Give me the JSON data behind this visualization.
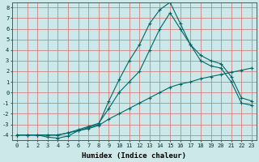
{
  "xlabel": "Humidex (Indice chaleur)",
  "bg_color": "#cce8e8",
  "grid_color": "#d08080",
  "line_color": "#006868",
  "xlim": [
    -0.5,
    23.5
  ],
  "ylim": [
    -4.5,
    8.5
  ],
  "xticks": [
    0,
    1,
    2,
    3,
    4,
    5,
    6,
    7,
    8,
    9,
    10,
    11,
    12,
    13,
    14,
    15,
    16,
    17,
    18,
    19,
    20,
    21,
    22,
    23
  ],
  "yticks": [
    -4,
    -3,
    -2,
    -1,
    0,
    1,
    2,
    3,
    4,
    5,
    6,
    7,
    8
  ],
  "line1_x": [
    0,
    1,
    2,
    3,
    4,
    5,
    6,
    7,
    8,
    9,
    10,
    11,
    12,
    13,
    14,
    15,
    16,
    17,
    18,
    19,
    20,
    21,
    22,
    23
  ],
  "line1_y": [
    -4,
    -4,
    -4,
    -4,
    -4,
    -3.8,
    -3.6,
    -3.4,
    -3.1,
    -2.5,
    -2.0,
    -1.5,
    -1.0,
    -0.5,
    0.0,
    0.5,
    0.8,
    1.0,
    1.3,
    1.5,
    1.7,
    1.9,
    2.1,
    2.3
  ],
  "line2_x": [
    0,
    1,
    2,
    3,
    4,
    5,
    6,
    7,
    8,
    9,
    10,
    11,
    12,
    13,
    14,
    15,
    16,
    17,
    18,
    19,
    20,
    21,
    22,
    23
  ],
  "line2_y": [
    -4,
    -4,
    -4,
    -4.2,
    -4.3,
    -4.1,
    -3.6,
    -3.3,
    -3.0,
    -0.8,
    1.2,
    3.0,
    4.5,
    6.5,
    7.8,
    8.5,
    6.5,
    4.5,
    3.0,
    2.5,
    2.3,
    1.0,
    -1.0,
    -1.2
  ],
  "line3_x": [
    0,
    1,
    2,
    3,
    4,
    5,
    6,
    7,
    8,
    9,
    10,
    11,
    12,
    13,
    14,
    15,
    16,
    17,
    18,
    19,
    20,
    21,
    22,
    23
  ],
  "line3_y": [
    -4,
    -4,
    -4,
    -4,
    -4,
    -3.8,
    -3.5,
    -3.2,
    -2.9,
    -1.5,
    0.0,
    1.0,
    2.0,
    4.0,
    6.0,
    7.5,
    6.0,
    4.5,
    3.5,
    3.0,
    2.7,
    1.5,
    -0.5,
    -0.8
  ],
  "marker": "+",
  "markersize": 3,
  "linewidth": 0.8,
  "tick_fontsize": 5,
  "xlabel_fontsize": 6.5
}
